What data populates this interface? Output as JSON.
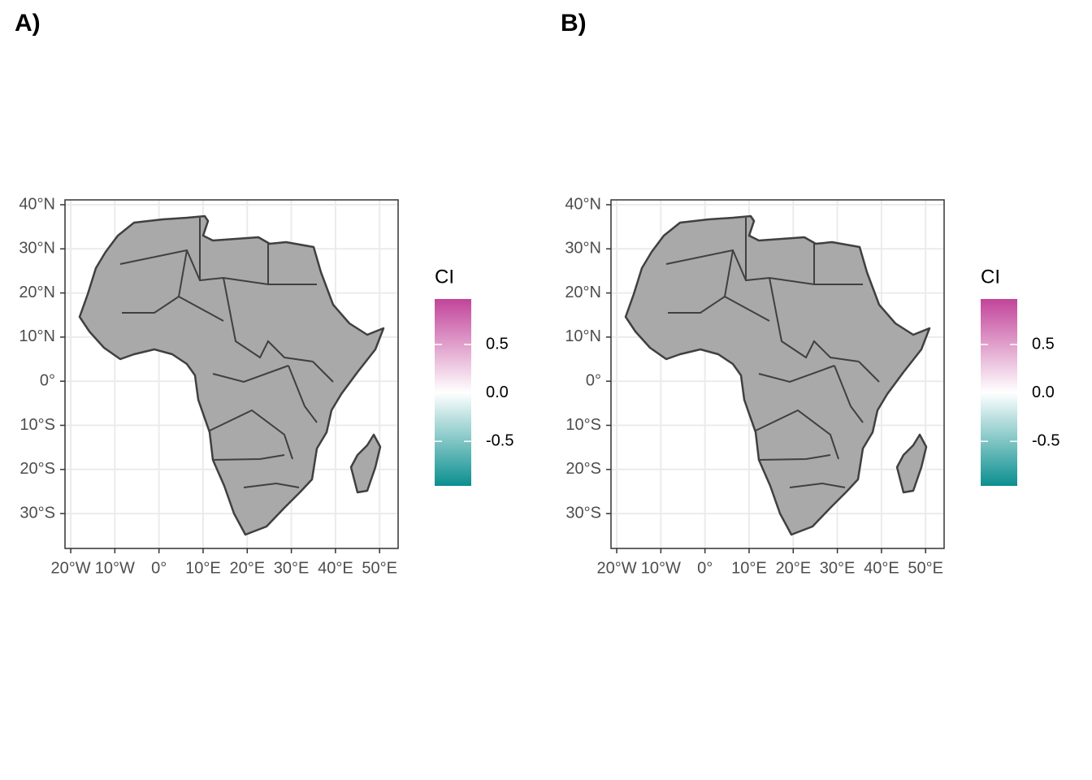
{
  "chart_data": [
    {
      "type": "map",
      "title": "A)",
      "xlim": [
        -21.3,
        54.2
      ],
      "ylim": [
        -37.9,
        41.1
      ],
      "xticks": [
        {
          "value": -20,
          "label": "20°W"
        },
        {
          "value": -10,
          "label": "10°W"
        },
        {
          "value": 0,
          "label": "0°"
        },
        {
          "value": 10,
          "label": "10°E"
        },
        {
          "value": 20,
          "label": "20°E"
        },
        {
          "value": 30,
          "label": "30°E"
        },
        {
          "value": 40,
          "label": "40°E"
        },
        {
          "value": 50,
          "label": "50°E"
        }
      ],
      "yticks": [
        {
          "value": 40,
          "label": "40°N"
        },
        {
          "value": 30,
          "label": "30°N"
        },
        {
          "value": 20,
          "label": "20°N"
        },
        {
          "value": 10,
          "label": "10°N"
        },
        {
          "value": 0,
          "label": "0°"
        },
        {
          "value": -10,
          "label": "10°S"
        },
        {
          "value": -20,
          "label": "20°S"
        },
        {
          "value": -30,
          "label": "30°S"
        }
      ],
      "grid": true,
      "legend": {
        "title": "CI",
        "lim": [
          -0.96,
          0.97
        ],
        "colors": [
          "#0b8f8f",
          "#ffffff",
          "#c2449a"
        ],
        "ticks": [
          0.5,
          {
            "value": 0,
            "label": "0.0"
          },
          -0.5
        ]
      }
    },
    {
      "type": "map",
      "title": "B)",
      "xlim": [
        -21.3,
        54.2
      ],
      "ylim": [
        -37.9,
        41.1
      ],
      "xticks": [
        {
          "value": -20,
          "label": "20°W"
        },
        {
          "value": -10,
          "label": "10°W"
        },
        {
          "value": 0,
          "label": "0°"
        },
        {
          "value": 10,
          "label": "10°E"
        },
        {
          "value": 20,
          "label": "20°E"
        },
        {
          "value": 30,
          "label": "30°E"
        },
        {
          "value": 40,
          "label": "40°E"
        },
        {
          "value": 50,
          "label": "50°E"
        }
      ],
      "yticks": [
        {
          "value": 40,
          "label": "40°N"
        },
        {
          "value": 30,
          "label": "30°N"
        },
        {
          "value": 20,
          "label": "20°N"
        },
        {
          "value": 10,
          "label": "10°N"
        },
        {
          "value": 0,
          "label": "0°"
        },
        {
          "value": -10,
          "label": "10°S"
        },
        {
          "value": -20,
          "label": "20°S"
        },
        {
          "value": -30,
          "label": "30°S"
        }
      ],
      "grid": true,
      "legend": {
        "title": "CI",
        "lim": [
          -0.96,
          0.97
        ],
        "colors": [
          "#0b8f8f",
          "#ffffff",
          "#c2449a"
        ],
        "ticks": [
          0.5,
          {
            "value": 0,
            "label": "0.0"
          },
          -0.5
        ]
      }
    }
  ]
}
